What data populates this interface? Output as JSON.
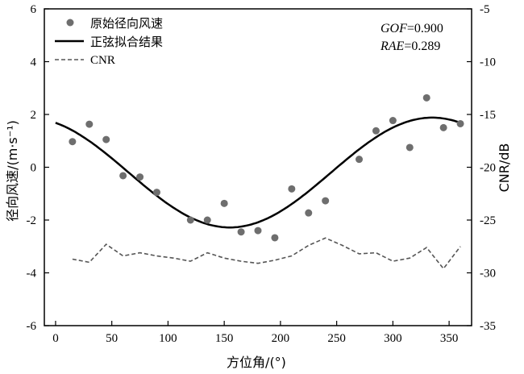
{
  "chart_data": {
    "type": "scatter",
    "xlabel": "方位角/(°)",
    "ylabel_left": "径向风速/(m·s⁻¹)",
    "ylabel_right": "CNR/dB",
    "xlim": [
      -10,
      370
    ],
    "ylim_left": [
      -6,
      6
    ],
    "ylim_right": [
      -35,
      -5
    ],
    "x_ticks": [
      0,
      50,
      100,
      150,
      200,
      250,
      300,
      350
    ],
    "x_tick_labels": [
      "0",
      "50",
      "100",
      "150",
      "200",
      "250",
      "300",
      "350"
    ],
    "y_left_ticks": [
      6,
      4,
      2,
      0,
      -2,
      -4,
      -6
    ],
    "y_left_tick_labels": [
      "6",
      "4",
      "2",
      "0",
      "-2",
      "-4",
      "-6"
    ],
    "y_right_ticks": [
      -5,
      -10,
      -15,
      -20,
      -25,
      -30,
      -35
    ],
    "y_right_tick_labels": [
      "-5",
      "-10",
      "-15",
      "-20",
      "-25",
      "-30",
      "-35"
    ],
    "grid": false,
    "legend_position": "top-left",
    "series": [
      {
        "name": "原始径向风速",
        "kind": "scatter",
        "axis": "left",
        "color": "#6e6e6e",
        "x": [
          15,
          30,
          45,
          60,
          75,
          90,
          120,
          135,
          150,
          165,
          180,
          195,
          210,
          225,
          240,
          270,
          285,
          300,
          315,
          330,
          345,
          360
        ],
        "y": [
          0.97,
          1.63,
          1.05,
          -0.32,
          -0.37,
          -0.95,
          -2.0,
          -2.0,
          -1.37,
          -2.45,
          -2.4,
          -2.67,
          -0.82,
          -1.73,
          -1.27,
          0.3,
          1.38,
          1.77,
          0.75,
          2.63,
          1.5,
          1.65
        ]
      },
      {
        "name": "正弦拟合结果",
        "kind": "line",
        "axis": "left",
        "color": "#000000",
        "model": {
          "offset": -0.2,
          "amplitude": 2.08,
          "phase_deg": 155
        },
        "x": [
          0,
          15,
          30,
          45,
          60,
          75,
          90,
          105,
          120,
          135,
          150,
          165,
          180,
          195,
          210,
          225,
          240,
          255,
          270,
          285,
          300,
          315,
          330,
          345,
          360
        ],
        "y": [
          1.77,
          1.62,
          1.33,
          0.91,
          0.39,
          -0.17,
          -0.76,
          -1.31,
          -1.78,
          -2.11,
          -2.27,
          -2.24,
          -2.0,
          -1.59,
          -1.04,
          -0.44,
          0.16,
          0.72,
          1.2,
          1.57,
          1.79,
          1.86,
          1.76,
          1.51,
          1.77
        ]
      },
      {
        "name": "CNR",
        "kind": "line",
        "style": "dashed",
        "axis": "right",
        "color": "#555555",
        "x": [
          15,
          30,
          45,
          60,
          75,
          90,
          105,
          120,
          135,
          150,
          165,
          180,
          195,
          210,
          225,
          240,
          255,
          270,
          285,
          300,
          315,
          330,
          345,
          360
        ],
        "y": [
          -28.7,
          -29.0,
          -27.3,
          -28.4,
          -28.1,
          -28.4,
          -28.6,
          -28.9,
          -28.1,
          -28.6,
          -28.9,
          -29.1,
          -28.8,
          -28.4,
          -27.4,
          -26.7,
          -27.4,
          -28.2,
          -28.1,
          -28.9,
          -28.6,
          -27.6,
          -29.6,
          -27.5
        ]
      }
    ],
    "annotations": [
      {
        "label": "GOF",
        "value": "=0.900"
      },
      {
        "label": "RAE",
        "value": "=0.289"
      }
    ]
  }
}
